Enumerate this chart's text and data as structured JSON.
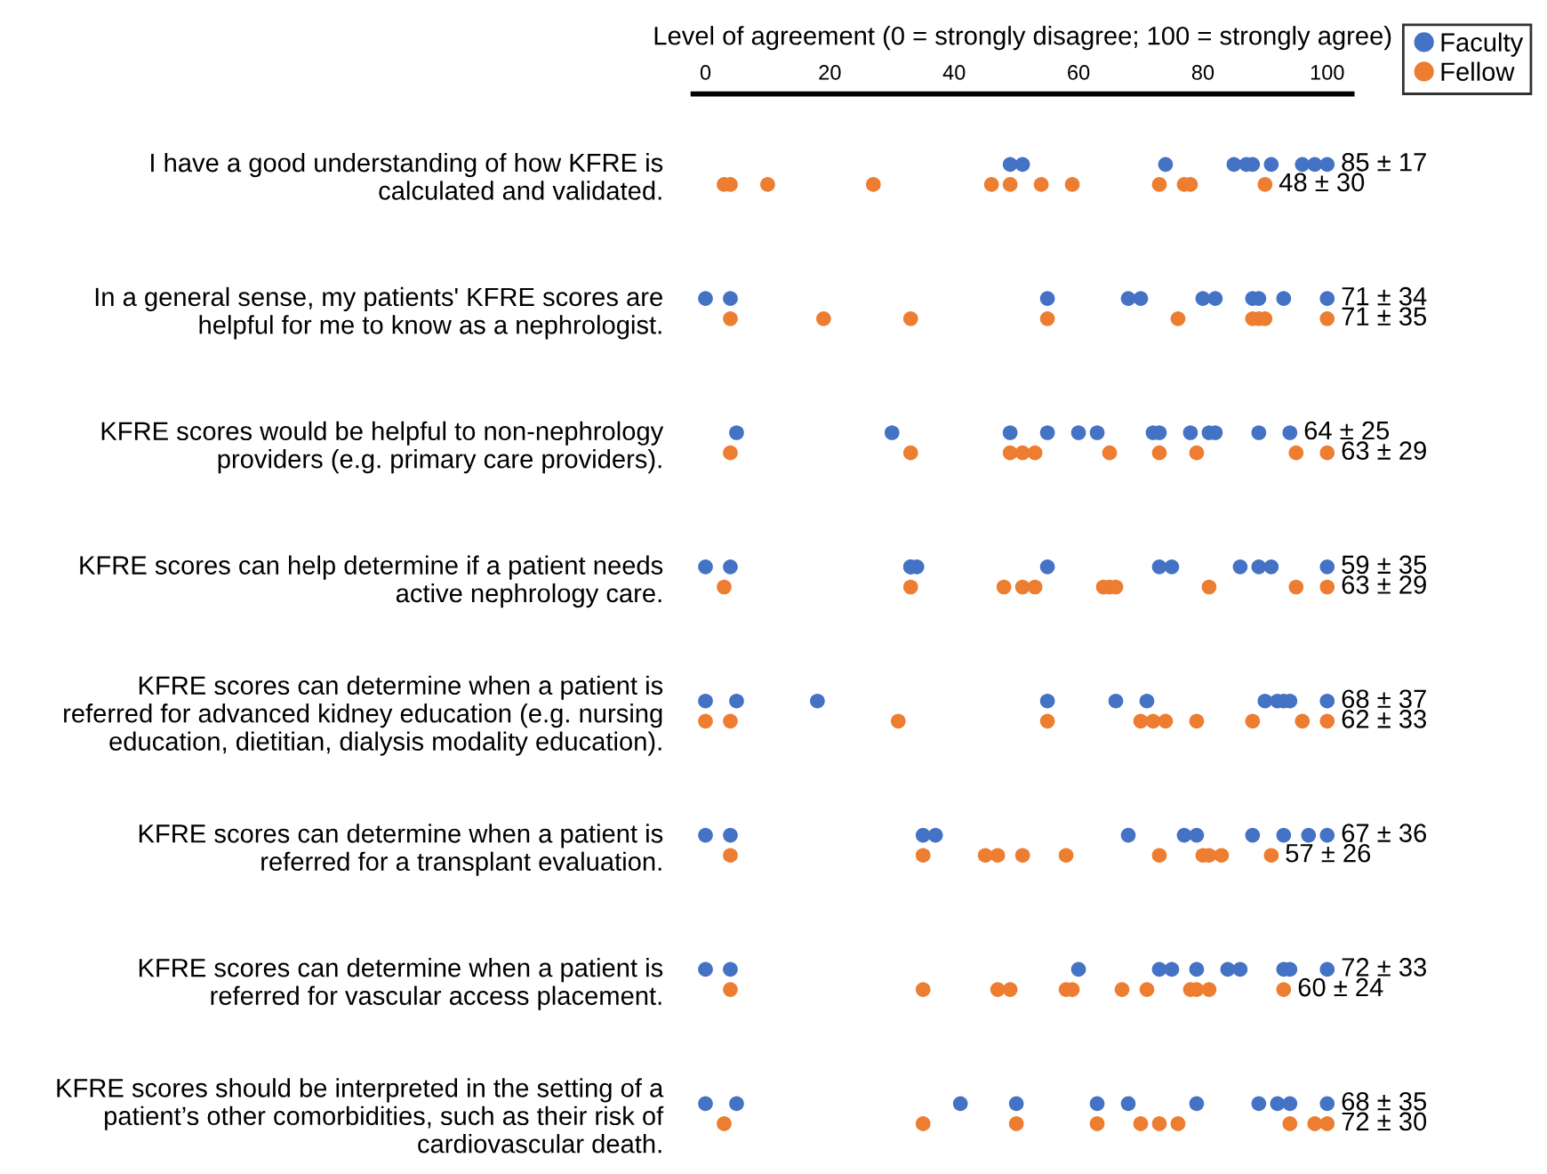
{
  "chart_data": {
    "type": "scatter",
    "orientation": "horizontal",
    "xlabel": "Level of agreement (0 = strongly disagree; 100 = strongly agree)",
    "categories": [
      "I have a good understanding of how KFRE is\ncalculated and validated.",
      "In a general sense, my patients' KFRE scores are\nhelpful for me to know as a nephrologist.",
      "KFRE scores would be helpful to non-nephrology\nproviders (e.g. primary care providers).",
      "KFRE scores can help determine if a patient needs\nactive nephrology care.",
      "KFRE scores can determine when a patient is\nreferred for advanced kidney education (e.g. nursing\neducation, dietitian, dialysis modality education).",
      "KFRE scores can determine when a patient is\nreferred for a transplant evaluation.",
      "KFRE scores can determine when a patient is\nreferred for vascular access placement.",
      "KFRE scores should be interpreted in the setting of a\npatient’s other comorbidities, such as their risk of\ncardiovascular death."
    ],
    "series": [
      {
        "name": "Faculty",
        "color": "#4472c4",
        "values": [
          49,
          51,
          74,
          85,
          87,
          88,
          91,
          96,
          98,
          100,
          0,
          4,
          55,
          68,
          70,
          80,
          82,
          88,
          89,
          93,
          100,
          5,
          30,
          49,
          55,
          60,
          63,
          72,
          73,
          78,
          81,
          82,
          89,
          94,
          0,
          4,
          33,
          33,
          34,
          55,
          73,
          75,
          86,
          89,
          91,
          100,
          0,
          5,
          18,
          55,
          66,
          71,
          90,
          92,
          93,
          94,
          100,
          0,
          4,
          35,
          37,
          68,
          77,
          79,
          88,
          93,
          97,
          100,
          0,
          4,
          60,
          73,
          75,
          79,
          84,
          86,
          93,
          94,
          100,
          0,
          5,
          41,
          50,
          63,
          68,
          79,
          89,
          92,
          94,
          100
        ],
        "x": [
          "I have a good understanding of how KFRE is\ncalculated and validated.",
          "I have a good understanding of how KFRE is\ncalculated and validated.",
          "I have a good understanding of how KFRE is\ncalculated and validated.",
          "I have a good understanding of how KFRE is\ncalculated and validated.",
          "I have a good understanding of how KFRE is\ncalculated and validated.",
          "I have a good understanding of how KFRE is\ncalculated and validated.",
          "I have a good understanding of how KFRE is\ncalculated and validated.",
          "I have a good understanding of how KFRE is\ncalculated and validated.",
          "I have a good understanding of how KFRE is\ncalculated and validated.",
          "I have a good understanding of how KFRE is\ncalculated and validated.",
          "In a general sense, my patients' KFRE scores are\nhelpful for me to know as a nephrologist.",
          "In a general sense, my patients' KFRE scores are\nhelpful for me to know as a nephrologist.",
          "In a general sense, my patients' KFRE scores are\nhelpful for me to know as a nephrologist.",
          "In a general sense, my patients' KFRE scores are\nhelpful for me to know as a nephrologist.",
          "In a general sense, my patients' KFRE scores are\nhelpful for me to know as a nephrologist.",
          "In a general sense, my patients' KFRE scores are\nhelpful for me to know as a nephrologist.",
          "In a general sense, my patients' KFRE scores are\nhelpful for me to know as a nephrologist.",
          "In a general sense, my patients' KFRE scores are\nhelpful for me to know as a nephrologist.",
          "In a general sense, my patients' KFRE scores are\nhelpful for me to know as a nephrologist.",
          "In a general sense, my patients' KFRE scores are\nhelpful for me to know as a nephrologist.",
          "In a general sense, my patients' KFRE scores are\nhelpful for me to know as a nephrologist.",
          "KFRE scores would be helpful to non-nephrology\nproviders (e.g. primary care providers).",
          "KFRE scores would be helpful to non-nephrology\nproviders (e.g. primary care providers).",
          "KFRE scores would be helpful to non-nephrology\nproviders (e.g. primary care providers).",
          "KFRE scores would be helpful to non-nephrology\nproviders (e.g. primary care providers).",
          "KFRE scores would be helpful to non-nephrology\nproviders (e.g. primary care providers).",
          "KFRE scores would be helpful to non-nephrology\nproviders (e.g. primary care providers).",
          "KFRE scores would be helpful to non-nephrology\nproviders (e.g. primary care providers).",
          "KFRE scores would be helpful to non-nephrology\nproviders (e.g. primary care providers).",
          "KFRE scores would be helpful to non-nephrology\nproviders (e.g. primary care providers).",
          "KFRE scores would be helpful to non-nephrology\nproviders (e.g. primary care providers).",
          "KFRE scores would be helpful to non-nephrology\nproviders (e.g. primary care providers).",
          "KFRE scores would be helpful to non-nephrology\nproviders (e.g. primary care providers).",
          "KFRE scores would be helpful to non-nephrology\nproviders (e.g. primary care providers).",
          "KFRE scores can help determine if a patient needs\nactive nephrology care.",
          "KFRE scores can help determine if a patient needs\nactive nephrology care.",
          "KFRE scores can help determine if a patient needs\nactive nephrology care.",
          "KFRE scores can help determine if a patient needs\nactive nephrology care.",
          "KFRE scores can help determine if a patient needs\nactive nephrology care.",
          "KFRE scores can help determine if a patient needs\nactive nephrology care.",
          "KFRE scores can help determine if a patient needs\nactive nephrology care.",
          "KFRE scores can help determine if a patient needs\nactive nephrology care.",
          "KFRE scores can help determine if a patient needs\nactive nephrology care.",
          "KFRE scores can help determine if a patient needs\nactive nephrology care.",
          "KFRE scores can help determine if a patient needs\nactive nephrology care.",
          "KFRE scores can help determine if a patient needs\nactive nephrology care.",
          "KFRE scores can determine when a patient is\nreferred for advanced kidney education (e.g. nursing\neducation, dietitian, dialysis modality education).",
          "KFRE scores can determine when a patient is\nreferred for advanced kidney education (e.g. nursing\neducation, dietitian, dialysis modality education).",
          "KFRE scores can determine when a patient is\nreferred for advanced kidney education (e.g. nursing\neducation, dietitian, dialysis modality education).",
          "KFRE scores can determine when a patient is\nreferred for advanced kidney education (e.g. nursing\neducation, dietitian, dialysis modality education).",
          "KFRE scores can determine when a patient is\nreferred for advanced kidney education (e.g. nursing\neducation, dietitian, dialysis modality education).",
          "KFRE scores can determine when a patient is\nreferred for advanced kidney education (e.g. nursing\neducation, dietitian, dialysis modality education).",
          "KFRE scores can determine when a patient is\nreferred for advanced kidney education (e.g. nursing\neducation, dietitian, dialysis modality education).",
          "KFRE scores can determine when a patient is\nreferred for advanced kidney education (e.g. nursing\neducation, dietitian, dialysis modality education).",
          "KFRE scores can determine when a patient is\nreferred for advanced kidney education (e.g. nursing\neducation, dietitian, dialysis modality education).",
          "KFRE scores can determine when a patient is\nreferred for advanced kidney education (e.g. nursing\neducation, dietitian, dialysis modality education).",
          "KFRE scores can determine when a patient is\nreferred for advanced kidney education (e.g. nursing\neducation, dietitian, dialysis modality education).",
          "KFRE scores can determine when a patient is\nreferred for a transplant evaluation.",
          "KFRE scores can determine when a patient is\nreferred for a transplant evaluation.",
          "KFRE scores can determine when a patient is\nreferred for a transplant evaluation.",
          "KFRE scores can determine when a patient is\nreferred for a transplant evaluation.",
          "KFRE scores can determine when a patient is\nreferred for a transplant evaluation.",
          "KFRE scores can determine when a patient is\nreferred for a transplant evaluation.",
          "KFRE scores can determine when a patient is\nreferred for a transplant evaluation.",
          "KFRE scores can determine when a patient is\nreferred for a transplant evaluation.",
          "KFRE scores can determine when a patient is\nreferred for a transplant evaluation.",
          "KFRE scores can determine when a patient is\nreferred for a transplant evaluation.",
          "KFRE scores can determine when a patient is\nreferred for a transplant evaluation.",
          "KFRE scores can determine when a patient is\nreferred for vascular access placement.",
          "KFRE scores can determine when a patient is\nreferred for vascular access placement.",
          "KFRE scores can determine when a patient is\nreferred for vascular access placement.",
          "KFRE scores can determine when a patient is\nreferred for vascular access placement.",
          "KFRE scores can determine when a patient is\nreferred for vascular access placement.",
          "KFRE scores can determine when a patient is\nreferred for vascular access placement.",
          "KFRE scores can determine when a patient is\nreferred for vascular access placement.",
          "KFRE scores can determine when a patient is\nreferred for vascular access placement.",
          "KFRE scores can determine when a patient is\nreferred for vascular access placement.",
          "KFRE scores can determine when a patient is\nreferred for vascular access placement.",
          "KFRE scores can determine when a patient is\nreferred for vascular access placement.",
          "KFRE scores should be interpreted in the setting of a\npatient’s other comorbidities, such as their risk of\ncardiovascular death.",
          "KFRE scores should be interpreted in the setting of a\npatient’s other comorbidities, such as their risk of\ncardiovascular death.",
          "KFRE scores should be interpreted in the setting of a\npatient’s other comorbidities, such as their risk of\ncardiovascular death.",
          "KFRE scores should be interpreted in the setting of a\npatient’s other comorbidities, such as their risk of\ncardiovascular death.",
          "KFRE scores should be interpreted in the setting of a\npatient’s other comorbidities, such as their risk of\ncardiovascular death.",
          "KFRE scores should be interpreted in the setting of a\npatient’s other comorbidities, such as their risk of\ncardiovascular death.",
          "KFRE scores should be interpreted in the setting of a\npatient’s other comorbidities, such as their risk of\ncardiovascular death.",
          "KFRE scores should be interpreted in the setting of a\npatient’s other comorbidities, such as their risk of\ncardiovascular death.",
          "KFRE scores should be interpreted in the setting of a\npatient’s other comorbidities, such as their risk of\ncardiovascular death.",
          "KFRE scores should be interpreted in the setting of a\npatient’s other comorbidities, such as their risk of\ncardiovascular death.",
          "KFRE scores should be interpreted in the setting of a\npatient’s other comorbidities, such as their risk of\ncardiovascular death."
        ]
      },
      {
        "name": "Fellow",
        "color": "#ed7d31",
        "values": [
          3,
          4,
          10,
          27,
          46,
          49,
          54,
          59,
          73,
          77,
          78,
          90,
          4,
          19,
          33,
          55,
          76,
          88,
          89,
          90,
          100,
          4,
          33,
          49,
          51,
          53,
          65,
          73,
          79,
          95,
          100,
          3,
          33,
          48,
          51,
          53,
          64,
          65,
          66,
          81,
          95,
          100,
          0,
          4,
          31,
          55,
          70,
          72,
          74,
          79,
          88,
          96,
          100,
          4,
          35,
          45,
          47,
          51,
          58,
          73,
          80,
          81,
          83,
          91,
          4,
          35,
          47,
          49,
          58,
          59,
          67,
          71,
          78,
          79,
          81,
          93,
          3,
          35,
          50,
          63,
          70,
          73,
          76,
          94,
          98,
          100
        ],
        "x": [
          "I have a good understanding of how KFRE is\ncalculated and validated.",
          "I have a good understanding of how KFRE is\ncalculated and validated.",
          "I have a good understanding of how KFRE is\ncalculated and validated.",
          "I have a good understanding of how KFRE is\ncalculated and validated.",
          "I have a good understanding of how KFRE is\ncalculated and validated.",
          "I have a good understanding of how KFRE is\ncalculated and validated.",
          "I have a good understanding of how KFRE is\ncalculated and validated.",
          "I have a good understanding of how KFRE is\ncalculated and validated.",
          "I have a good understanding of how KFRE is\ncalculated and validated.",
          "I have a good understanding of how KFRE is\ncalculated and validated.",
          "I have a good understanding of how KFRE is\ncalculated and validated.",
          "I have a good understanding of how KFRE is\ncalculated and validated.",
          "In a general sense, my patients' KFRE scores are\nhelpful for me to know as a nephrologist.",
          "In a general sense, my patients' KFRE scores are\nhelpful for me to know as a nephrologist.",
          "In a general sense, my patients' KFRE scores are\nhelpful for me to know as a nephrologist.",
          "In a general sense, my patients' KFRE scores are\nhelpful for me to know as a nephrologist.",
          "In a general sense, my patients' KFRE scores are\nhelpful for me to know as a nephrologist.",
          "In a general sense, my patients' KFRE scores are\nhelpful for me to know as a nephrologist.",
          "In a general sense, my patients' KFRE scores are\nhelpful for me to know as a nephrologist.",
          "In a general sense, my patients' KFRE scores are\nhelpful for me to know as a nephrologist.",
          "In a general sense, my patients' KFRE scores are\nhelpful for me to know as a nephrologist.",
          "KFRE scores would be helpful to non-nephrology\nproviders (e.g. primary care providers).",
          "KFRE scores would be helpful to non-nephrology\nproviders (e.g. primary care providers).",
          "KFRE scores would be helpful to non-nephrology\nproviders (e.g. primary care providers).",
          "KFRE scores would be helpful to non-nephrology\nproviders (e.g. primary care providers).",
          "KFRE scores would be helpful to non-nephrology\nproviders (e.g. primary care providers).",
          "KFRE scores would be helpful to non-nephrology\nproviders (e.g. primary care providers).",
          "KFRE scores would be helpful to non-nephrology\nproviders (e.g. primary care providers).",
          "KFRE scores would be helpful to non-nephrology\nproviders (e.g. primary care providers).",
          "KFRE scores would be helpful to non-nephrology\nproviders (e.g. primary care providers).",
          "KFRE scores would be helpful to non-nephrology\nproviders (e.g. primary care providers).",
          "KFRE scores can help determine if a patient needs\nactive nephrology care.",
          "KFRE scores can help determine if a patient needs\nactive nephrology care.",
          "KFRE scores can help determine if a patient needs\nactive nephrology care.",
          "KFRE scores can help determine if a patient needs\nactive nephrology care.",
          "KFRE scores can help determine if a patient needs\nactive nephrology care.",
          "KFRE scores can help determine if a patient needs\nactive nephrology care.",
          "KFRE scores can help determine if a patient needs\nactive nephrology care.",
          "KFRE scores can help determine if a patient needs\nactive nephrology care.",
          "KFRE scores can help determine if a patient needs\nactive nephrology care.",
          "KFRE scores can help determine if a patient needs\nactive nephrology care.",
          "KFRE scores can help determine if a patient needs\nactive nephrology care.",
          "KFRE scores can determine when a patient is\nreferred for advanced kidney education (e.g. nursing\neducation, dietitian, dialysis modality education).",
          "KFRE scores can determine when a patient is\nreferred for advanced kidney education (e.g. nursing\neducation, dietitian, dialysis modality education).",
          "KFRE scores can determine when a patient is\nreferred for advanced kidney education (e.g. nursing\neducation, dietitian, dialysis modality education).",
          "KFRE scores can determine when a patient is\nreferred for advanced kidney education (e.g. nursing\neducation, dietitian, dialysis modality education).",
          "KFRE scores can determine when a patient is\nreferred for advanced kidney education (e.g. nursing\neducation, dietitian, dialysis modality education).",
          "KFRE scores can determine when a patient is\nreferred for advanced kidney education (e.g. nursing\neducation, dietitian, dialysis modality education).",
          "KFRE scores can determine when a patient is\nreferred for advanced kidney education (e.g. nursing\neducation, dietitian, dialysis modality education).",
          "KFRE scores can determine when a patient is\nreferred for advanced kidney education (e.g. nursing\neducation, dietitian, dialysis modality education).",
          "KFRE scores can determine when a patient is\nreferred for advanced kidney education (e.g. nursing\neducation, dietitian, dialysis modality education).",
          "KFRE scores can determine when a patient is\nreferred for advanced kidney education (e.g. nursing\neducation, dietitian, dialysis modality education).",
          "KFRE scores can determine when a patient is\nreferred for advanced kidney education (e.g. nursing\neducation, dietitian, dialysis modality education).",
          "KFRE scores can determine when a patient is\nreferred for a transplant evaluation.",
          "KFRE scores can determine when a patient is\nreferred for a transplant evaluation.",
          "KFRE scores can determine when a patient is\nreferred for a transplant evaluation.",
          "KFRE scores can determine when a patient is\nreferred for a transplant evaluation.",
          "KFRE scores can determine when a patient is\nreferred for a transplant evaluation.",
          "KFRE scores can determine when a patient is\nreferred for a transplant evaluation.",
          "KFRE scores can determine when a patient is\nreferred for a transplant evaluation.",
          "KFRE scores can determine when a patient is\nreferred for a transplant evaluation.",
          "KFRE scores can determine when a patient is\nreferred for a transplant evaluation.",
          "KFRE scores can determine when a patient is\nreferred for a transplant evaluation.",
          "KFRE scores can determine when a patient is\nreferred for a transplant evaluation.",
          "KFRE scores can determine when a patient is\nreferred for vascular access placement.",
          "KFRE scores can determine when a patient is\nreferred for vascular access placement.",
          "KFRE scores can determine when a patient is\nreferred for vascular access placement.",
          "KFRE scores can determine when a patient is\nreferred for vascular access placement.",
          "KFRE scores can determine when a patient is\nreferred for vascular access placement.",
          "KFRE scores can determine when a patient is\nreferred for vascular access placement.",
          "KFRE scores can determine when a patient is\nreferred for vascular access placement.",
          "KFRE scores can determine when a patient is\nreferred for vascular access placement.",
          "KFRE scores can determine when a patient is\nreferred for vascular access placement.",
          "KFRE scores can determine when a patient is\nreferred for vascular access placement.",
          "KFRE scores can determine when a patient is\nreferred for vascular access placement.",
          "KFRE scores can determine when a patient is\nreferred for vascular access placement.",
          "KFRE scores should be interpreted in the setting of a\npatient’s other comorbidities, such as their risk of\ncardiovascular death.",
          "KFRE scores should be interpreted in the setting of a\npatient’s other comorbidities, such as their risk of\ncardiovascular death.",
          "KFRE scores should be interpreted in the setting of a\npatient’s other comorbidities, such as their risk of\ncardiovascular death.",
          "KFRE scores should be interpreted in the setting of a\npatient’s other comorbidities, such as their risk of\ncardiovascular death.",
          "KFRE scores should be interpreted in the setting of a\npatient’s other comorbidities, such as their risk of\ncardiovascular death.",
          "KFRE scores should be interpreted in the setting of a\npatient’s other comorbidities, such as their risk of\ncardiovascular death.",
          "KFRE scores should be interpreted in the setting of a\npatient’s other comorbidities, such as their risk of\ncardiovascular death.",
          "KFRE scores should be interpreted in the setting of a\npatient’s other comorbidities, such as their risk of\ncardiovascular death.",
          "KFRE scores should be interpreted in the setting of a\npatient’s other comorbidities, such as their risk of\ncardiovascular death.",
          "KFRE scores should be interpreted in the setting of a\npatient’s other comorbidities, such as their risk of\ncardiovascular death."
        ]
      }
    ],
    "annotations": [
      "85 ± 17",
      "48 ± 30",
      "71 ± 34",
      "71 ± 35",
      "64 ± 25",
      "63 ± 29",
      "59 ± 35",
      "63 ± 29",
      "68 ± 37",
      "62 ± 33",
      "67 ± 36",
      "57 ± 26",
      "72 ± 33",
      "60 ± 24",
      "68 ± 35",
      "72 ± 30"
    ],
    "xlim": [
      -2,
      104
    ],
    "xticks": [
      0,
      20,
      40,
      60,
      80,
      100
    ],
    "marker": "circle",
    "legend": "top right",
    "grid": false
  }
}
